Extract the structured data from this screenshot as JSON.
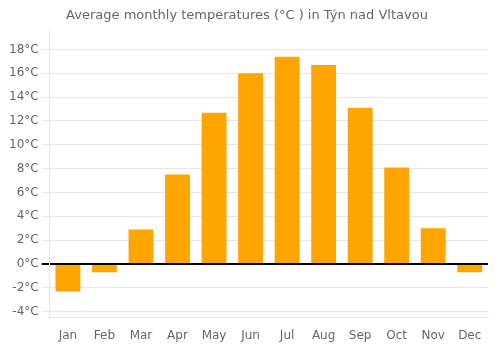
{
  "chart_data": {
    "type": "bar",
    "title": "Average monthly temperatures (°C ) in Týn nad Vltavou",
    "categories": [
      "Jan",
      "Feb",
      "Mar",
      "Apr",
      "May",
      "Jun",
      "Jul",
      "Aug",
      "Sep",
      "Oct",
      "Nov",
      "Dec"
    ],
    "values": [
      -2.3,
      -0.7,
      2.9,
      7.5,
      12.7,
      16.0,
      17.4,
      16.7,
      13.1,
      8.1,
      3.0,
      -0.7
    ],
    "color": "#FFA500",
    "ylim": [
      -4.5,
      19.5
    ],
    "yticks": [
      {
        "value": -4,
        "label": "-4°C"
      },
      {
        "value": -2,
        "label": "-2°C"
      },
      {
        "value": 0,
        "label": "0°C"
      },
      {
        "value": 2,
        "label": "2°C"
      },
      {
        "value": 4,
        "label": "4°C"
      },
      {
        "value": 6,
        "label": "6°C"
      },
      {
        "value": 8,
        "label": "8°C"
      },
      {
        "value": 10,
        "label": "10°C"
      },
      {
        "value": 12,
        "label": "12°C"
      },
      {
        "value": 14,
        "label": "14°C"
      },
      {
        "value": 16,
        "label": "16°C"
      },
      {
        "value": 18,
        "label": "18°C"
      }
    ],
    "grid": true
  }
}
